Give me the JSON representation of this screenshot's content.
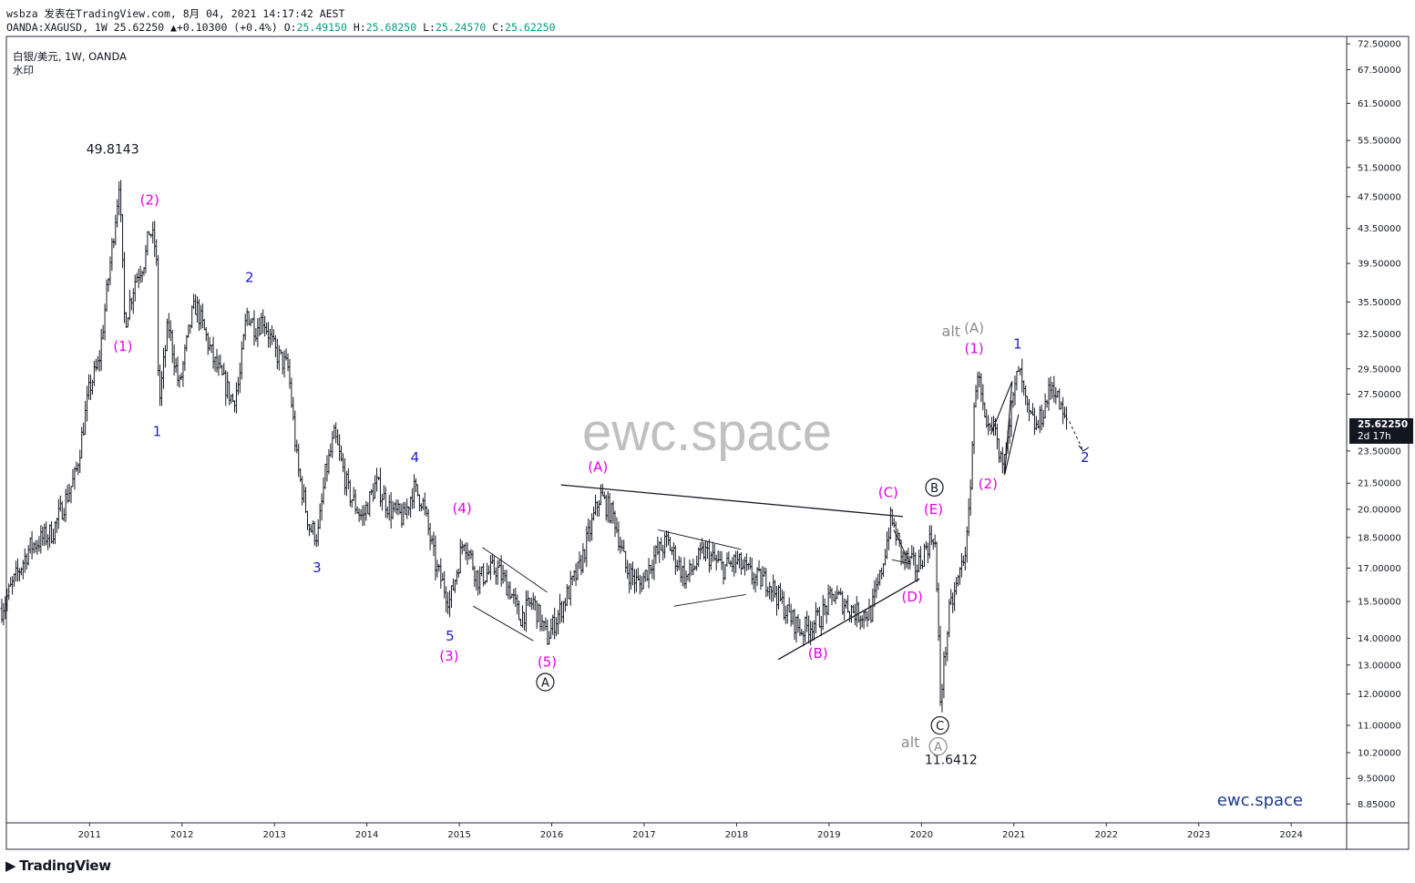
{
  "header": {
    "line1": "wsbza 发表在TradingView.com, 8月 04, 2021 14:17:42 AEST",
    "symbol_full": "OANDA:XAGUSD, 1W",
    "last": "25.62250",
    "change": "+0.10300 (+0.4%)",
    "o_label": "O:",
    "o": "25.49150",
    "h_label": "H:",
    "h": "25.68250",
    "l_label": "L:",
    "l": "25.24570",
    "c_label": "C:",
    "c": "25.62250"
  },
  "symbol_info": {
    "title": "白银/美元, 1W, OANDA",
    "watermark_label": "水印"
  },
  "price_badge": {
    "price": "25.62250",
    "countdown": "2d 17h"
  },
  "branding": {
    "logo": "▶",
    "name": "TradingView"
  },
  "colors": {
    "bar": "#131722",
    "wave_magenta": "#e600e6",
    "wave_blue": "#1d1dcc",
    "alt_gray": "#8a8a8a",
    "watermark": "#c0c0c0",
    "ewc_blue": "#1c3b8a"
  },
  "chart_data": {
    "type": "ohlc",
    "title": "白银/美元, 1W, OANDA",
    "y_scale": "log",
    "ylim": [
      8.4,
      74
    ],
    "xlim": [
      2010.1,
      2024.6
    ],
    "x_ticks": [
      "2011",
      "2012",
      "2013",
      "2014",
      "2015",
      "2016",
      "2017",
      "2018",
      "2019",
      "2020",
      "2021",
      "2022",
      "2023",
      "2024"
    ],
    "y_ticks": [
      "72.50000",
      "67.50000",
      "61.50000",
      "55.50000",
      "51.50000",
      "47.50000",
      "43.50000",
      "39.50000",
      "35.50000",
      "32.50000",
      "29.50000",
      "27.50000",
      "23.50000",
      "21.50000",
      "20.00000",
      "18.50000",
      "17.00000",
      "15.50000",
      "14.00000",
      "13.00000",
      "12.00000",
      "11.00000",
      "10.20000",
      "9.50000",
      "8.85000"
    ],
    "price_path": [
      [
        2010.05,
        15.2
      ],
      [
        2010.35,
        18.0
      ],
      [
        2010.6,
        18.8
      ],
      [
        2010.85,
        22.0
      ],
      [
        2011.0,
        28.0
      ],
      [
        2011.1,
        30.0
      ],
      [
        2011.3,
        47.0
      ],
      [
        2011.32,
        49.8
      ],
      [
        2011.38,
        33.5
      ],
      [
        2011.5,
        38.0
      ],
      [
        2011.6,
        40.0
      ],
      [
        2011.65,
        43.5
      ],
      [
        2011.72,
        41.0
      ],
      [
        2011.75,
        26.5
      ],
      [
        2011.85,
        33.5
      ],
      [
        2011.97,
        28.0
      ],
      [
        2012.1,
        34.0
      ],
      [
        2012.15,
        35.2
      ],
      [
        2012.35,
        30.0
      ],
      [
        2012.55,
        27.0
      ],
      [
        2012.62,
        28.5
      ],
      [
        2012.7,
        34.5
      ],
      [
        2012.8,
        33.0
      ],
      [
        2012.88,
        34.0
      ],
      [
        2013.0,
        31.0
      ],
      [
        2013.15,
        29.5
      ],
      [
        2013.25,
        22.5
      ],
      [
        2013.38,
        19.0
      ],
      [
        2013.47,
        18.6
      ],
      [
        2013.55,
        22.0
      ],
      [
        2013.65,
        24.5
      ],
      [
        2013.8,
        21.0
      ],
      [
        2013.95,
        19.5
      ],
      [
        2014.1,
        21.5
      ],
      [
        2014.25,
        20.0
      ],
      [
        2014.4,
        19.5
      ],
      [
        2014.5,
        21.2
      ],
      [
        2014.6,
        20.5
      ],
      [
        2014.75,
        17.0
      ],
      [
        2014.9,
        15.5
      ],
      [
        2015.05,
        18.5
      ],
      [
        2015.2,
        16.5
      ],
      [
        2015.4,
        17.0
      ],
      [
        2015.55,
        16.0
      ],
      [
        2015.65,
        14.8
      ],
      [
        2015.8,
        15.5
      ],
      [
        2015.95,
        14.0
      ],
      [
        2016.1,
        15.2
      ],
      [
        2016.3,
        17.0
      ],
      [
        2016.45,
        19.5
      ],
      [
        2016.52,
        20.8
      ],
      [
        2016.68,
        19.5
      ],
      [
        2016.8,
        17.0
      ],
      [
        2016.95,
        16.2
      ],
      [
        2017.1,
        17.5
      ],
      [
        2017.25,
        18.3
      ],
      [
        2017.45,
        16.5
      ],
      [
        2017.65,
        17.8
      ],
      [
        2017.85,
        17.0
      ],
      [
        2018.0,
        17.3
      ],
      [
        2018.2,
        16.5
      ],
      [
        2018.35,
        16.4
      ],
      [
        2018.55,
        15.0
      ],
      [
        2018.7,
        14.3
      ],
      [
        2018.9,
        14.8
      ],
      [
        2019.05,
        15.8
      ],
      [
        2019.3,
        15.0
      ],
      [
        2019.45,
        15.0
      ],
      [
        2019.55,
        16.5
      ],
      [
        2019.67,
        19.5
      ],
      [
        2019.8,
        17.5
      ],
      [
        2019.95,
        17.0
      ],
      [
        2020.05,
        18.0
      ],
      [
        2020.14,
        18.8
      ],
      [
        2020.18,
        14.5
      ],
      [
        2020.2,
        11.7
      ],
      [
        2020.3,
        15.0
      ],
      [
        2020.4,
        16.5
      ],
      [
        2020.5,
        18.5
      ],
      [
        2020.55,
        24.0
      ],
      [
        2020.6,
        29.8
      ],
      [
        2020.7,
        24.5
      ],
      [
        2020.8,
        25.0
      ],
      [
        2020.85,
        22.5
      ],
      [
        2020.95,
        25.5
      ],
      [
        2021.05,
        29.5
      ],
      [
        2021.15,
        26.0
      ],
      [
        2021.25,
        25.0
      ],
      [
        2021.35,
        27.0
      ],
      [
        2021.42,
        28.4
      ],
      [
        2021.5,
        26.5
      ],
      [
        2021.55,
        25.5
      ],
      [
        2021.58,
        25.6
      ]
    ],
    "projection": [
      [
        2021.6,
        25.5
      ],
      [
        2021.75,
        23.5
      ]
    ],
    "wave_labels": [
      {
        "text": "49.8143",
        "x": 2011.25,
        "y": 53.5,
        "color": "#131722",
        "size": 14
      },
      {
        "text": "(2)",
        "x": 2011.65,
        "y": 46.5,
        "color": "#e600e6",
        "size": 15
      },
      {
        "text": "(1)",
        "x": 2011.36,
        "y": 31.0,
        "color": "#e600e6",
        "size": 15
      },
      {
        "text": "1",
        "x": 2011.73,
        "y": 24.5,
        "color": "#1d1dcc",
        "size": 15
      },
      {
        "text": "2",
        "x": 2012.73,
        "y": 37.5,
        "color": "#1d1dcc",
        "size": 15
      },
      {
        "text": "3",
        "x": 2013.46,
        "y": 16.8,
        "color": "#1d1dcc",
        "size": 15
      },
      {
        "text": "4",
        "x": 2014.52,
        "y": 22.8,
        "color": "#1d1dcc",
        "size": 15
      },
      {
        "text": "(4)",
        "x": 2015.03,
        "y": 19.8,
        "color": "#e600e6",
        "size": 15
      },
      {
        "text": "5",
        "x": 2014.9,
        "y": 13.9,
        "color": "#1d1dcc",
        "size": 15
      },
      {
        "text": "(3)",
        "x": 2014.89,
        "y": 13.15,
        "color": "#e600e6",
        "size": 15
      },
      {
        "text": "(5)",
        "x": 2015.95,
        "y": 12.95,
        "color": "#e600e6",
        "size": 15
      },
      {
        "text": "(A)",
        "x": 2016.5,
        "y": 22.2,
        "color": "#e600e6",
        "size": 15
      },
      {
        "text": "(B)",
        "x": 2018.88,
        "y": 13.25,
        "color": "#e600e6",
        "size": 15
      },
      {
        "text": "(C)",
        "x": 2019.64,
        "y": 20.7,
        "color": "#e600e6",
        "size": 15
      },
      {
        "text": "(E)",
        "x": 2020.13,
        "y": 19.75,
        "color": "#e600e6",
        "size": 15
      },
      {
        "text": "(D)",
        "x": 2019.9,
        "y": 15.5,
        "color": "#e600e6",
        "size": 15
      },
      {
        "text": "alt",
        "x": 2020.32,
        "y": 32.3,
        "color": "#8a8a8a",
        "size": 16
      },
      {
        "text": "(A)",
        "x": 2020.57,
        "y": 32.6,
        "color": "#8a8a8a",
        "size": 15
      },
      {
        "text": "(1)",
        "x": 2020.57,
        "y": 30.8,
        "color": "#e600e6",
        "size": 15
      },
      {
        "text": "1",
        "x": 2021.04,
        "y": 31.2,
        "color": "#1d1dcc",
        "size": 15
      },
      {
        "text": "(2)",
        "x": 2020.72,
        "y": 21.2,
        "color": "#e600e6",
        "size": 15
      },
      {
        "text": "2",
        "x": 2021.77,
        "y": 22.8,
        "color": "#1d1dcc",
        "size": 15
      },
      {
        "text": "alt",
        "x": 2019.88,
        "y": 10.35,
        "color": "#8a8a8a",
        "size": 16
      },
      {
        "text": "11.6412",
        "x": 2020.32,
        "y": 9.88,
        "color": "#131722",
        "size": 14
      }
    ],
    "circle_labels": [
      {
        "text": "A",
        "x": 2015.93,
        "y": 12.4,
        "color": "#131722"
      },
      {
        "text": "B",
        "x": 2020.14,
        "y": 21.25,
        "color": "#131722"
      },
      {
        "text": "C",
        "x": 2020.2,
        "y": 11.0,
        "color": "#131722"
      },
      {
        "text": "A",
        "x": 2020.18,
        "y": 10.38,
        "color": "#8a8a8a"
      }
    ],
    "trendlines": [
      {
        "points": [
          [
            2016.1,
            21.4
          ],
          [
            2019.8,
            19.6
          ]
        ],
        "width": 1.3
      },
      {
        "points": [
          [
            2018.45,
            13.2
          ],
          [
            2019.98,
            16.5
          ]
        ],
        "width": 1.3
      },
      {
        "points": [
          [
            2015.25,
            18.0
          ],
          [
            2015.95,
            15.9
          ]
        ],
        "width": 0.9
      },
      {
        "points": [
          [
            2015.15,
            15.3
          ],
          [
            2015.8,
            13.9
          ]
        ],
        "width": 0.9
      },
      {
        "points": [
          [
            2017.15,
            18.9
          ],
          [
            2018.05,
            17.9
          ]
        ],
        "width": 0.9
      },
      {
        "points": [
          [
            2017.32,
            15.3
          ],
          [
            2018.1,
            15.8
          ]
        ],
        "width": 0.9
      },
      {
        "points": [
          [
            2019.7,
            18.9
          ],
          [
            2019.88,
            17.2
          ],
          [
            2019.68,
            17.4
          ]
        ],
        "width": 0.9
      },
      {
        "points": [
          [
            2020.75,
            24.6
          ],
          [
            2020.98,
            28.5
          ],
          [
            2020.9,
            22.0
          ],
          [
            2021.05,
            26.0
          ]
        ],
        "width": 1.1
      }
    ],
    "watermark_text": "ewc.space",
    "signature_text": "ewc.space"
  }
}
